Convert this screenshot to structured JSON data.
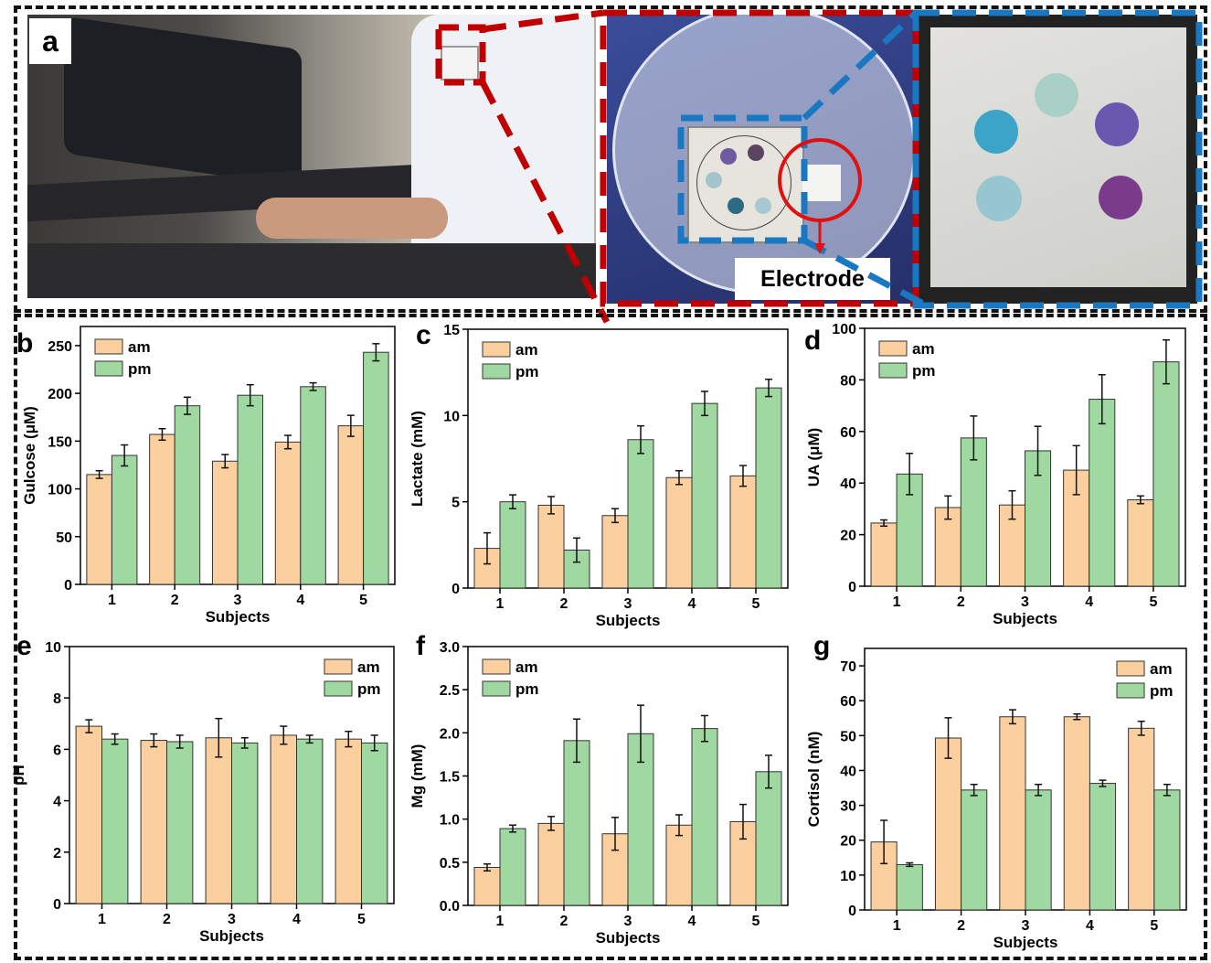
{
  "figure": {
    "panel_a": {
      "letter": "a",
      "callout": "Electrode"
    },
    "panel_letters": [
      "b",
      "c",
      "d",
      "e",
      "f",
      "g"
    ]
  },
  "colors": {
    "am": "#fbcf9e",
    "pm": "#9fd8a1",
    "red_frame": "#c00000",
    "blue_frame": "#1a78c2"
  },
  "chart_data": [
    {
      "type": "bar",
      "panel": "b",
      "categories": [
        "1",
        "2",
        "3",
        "4",
        "5"
      ],
      "xlabel": "Subjects",
      "ylabel": "Gulcose (μM)",
      "ylim": [
        0,
        270
      ],
      "yticks": [
        0,
        50,
        100,
        150,
        200,
        250
      ],
      "legend": "top-left",
      "series": [
        {
          "name": "am",
          "values": [
            115,
            157,
            129,
            149,
            166
          ],
          "errors": [
            4,
            6,
            7,
            7,
            11
          ]
        },
        {
          "name": "pm",
          "values": [
            135,
            187,
            198,
            207,
            243
          ],
          "errors": [
            11,
            9,
            11,
            4,
            9
          ]
        }
      ]
    },
    {
      "type": "bar",
      "panel": "c",
      "categories": [
        "1",
        "2",
        "3",
        "4",
        "5"
      ],
      "xlabel": "Subjects",
      "ylabel": "Lactate (mM)",
      "ylim": [
        0,
        15
      ],
      "yticks": [
        0,
        5,
        10,
        15
      ],
      "legend": "top-left",
      "series": [
        {
          "name": "am",
          "values": [
            2.3,
            4.8,
            4.2,
            6.4,
            6.5
          ],
          "errors": [
            0.9,
            0.5,
            0.4,
            0.4,
            0.6
          ]
        },
        {
          "name": "pm",
          "values": [
            5.0,
            2.2,
            8.6,
            10.7,
            11.6
          ],
          "errors": [
            0.4,
            0.7,
            0.8,
            0.7,
            0.5
          ]
        }
      ]
    },
    {
      "type": "bar",
      "panel": "d",
      "categories": [
        "1",
        "2",
        "3",
        "4",
        "5"
      ],
      "xlabel": "Subjects",
      "ylabel": "UA (μM)",
      "ylim": [
        0,
        100
      ],
      "yticks": [
        0,
        20,
        40,
        60,
        80,
        100
      ],
      "legend": "top-left",
      "series": [
        {
          "name": "am",
          "values": [
            24.5,
            30.5,
            31.5,
            45,
            33.5
          ],
          "errors": [
            1.2,
            4.5,
            5.5,
            9.5,
            1.5
          ]
        },
        {
          "name": "pm",
          "values": [
            43.5,
            57.5,
            52.5,
            72.5,
            87
          ],
          "errors": [
            8,
            8.5,
            9.5,
            9.5,
            8.5
          ]
        }
      ]
    },
    {
      "type": "bar",
      "panel": "e",
      "categories": [
        "1",
        "2",
        "3",
        "4",
        "5"
      ],
      "xlabel": "Subjects",
      "ylabel": "pH",
      "ylim": [
        0,
        10
      ],
      "yticks": [
        0,
        2,
        4,
        6,
        8,
        10
      ],
      "legend": "top-right",
      "series": [
        {
          "name": "am",
          "values": [
            6.9,
            6.35,
            6.45,
            6.55,
            6.4
          ],
          "errors": [
            0.25,
            0.25,
            0.75,
            0.35,
            0.3
          ]
        },
        {
          "name": "pm",
          "values": [
            6.4,
            6.3,
            6.25,
            6.4,
            6.25
          ],
          "errors": [
            0.2,
            0.25,
            0.2,
            0.15,
            0.3
          ]
        }
      ]
    },
    {
      "type": "bar",
      "panel": "f",
      "categories": [
        "1",
        "2",
        "3",
        "4",
        "5"
      ],
      "xlabel": "Subjects",
      "ylabel": "Mg (mM)",
      "ylim": [
        0,
        3.0
      ],
      "yticks": [
        0.0,
        0.5,
        1.0,
        1.5,
        2.0,
        2.5,
        3.0
      ],
      "legend": "top-left",
      "series": [
        {
          "name": "am",
          "values": [
            0.44,
            0.95,
            0.83,
            0.93,
            0.97
          ],
          "errors": [
            0.04,
            0.08,
            0.19,
            0.12,
            0.2
          ]
        },
        {
          "name": "pm",
          "values": [
            0.89,
            1.91,
            1.99,
            2.05,
            1.55
          ],
          "errors": [
            0.04,
            0.25,
            0.33,
            0.15,
            0.19
          ]
        }
      ]
    },
    {
      "type": "bar",
      "panel": "g",
      "categories": [
        "1",
        "2",
        "3",
        "4",
        "5"
      ],
      "xlabel": "Subjects",
      "ylabel": "Cortisol (nM)",
      "ylim": [
        0,
        75
      ],
      "yticks": [
        0,
        10,
        20,
        30,
        40,
        50,
        60,
        70
      ],
      "legend": "top-right",
      "series": [
        {
          "name": "am",
          "values": [
            19.5,
            49.3,
            55.4,
            55.4,
            52.1
          ],
          "errors": [
            6.2,
            5.8,
            2,
            0.8,
            2
          ]
        },
        {
          "name": "pm",
          "values": [
            13,
            34.4,
            34.4,
            36.3,
            34.4
          ],
          "errors": [
            0.5,
            1.6,
            1.6,
            0.9,
            1.6
          ]
        }
      ]
    }
  ]
}
